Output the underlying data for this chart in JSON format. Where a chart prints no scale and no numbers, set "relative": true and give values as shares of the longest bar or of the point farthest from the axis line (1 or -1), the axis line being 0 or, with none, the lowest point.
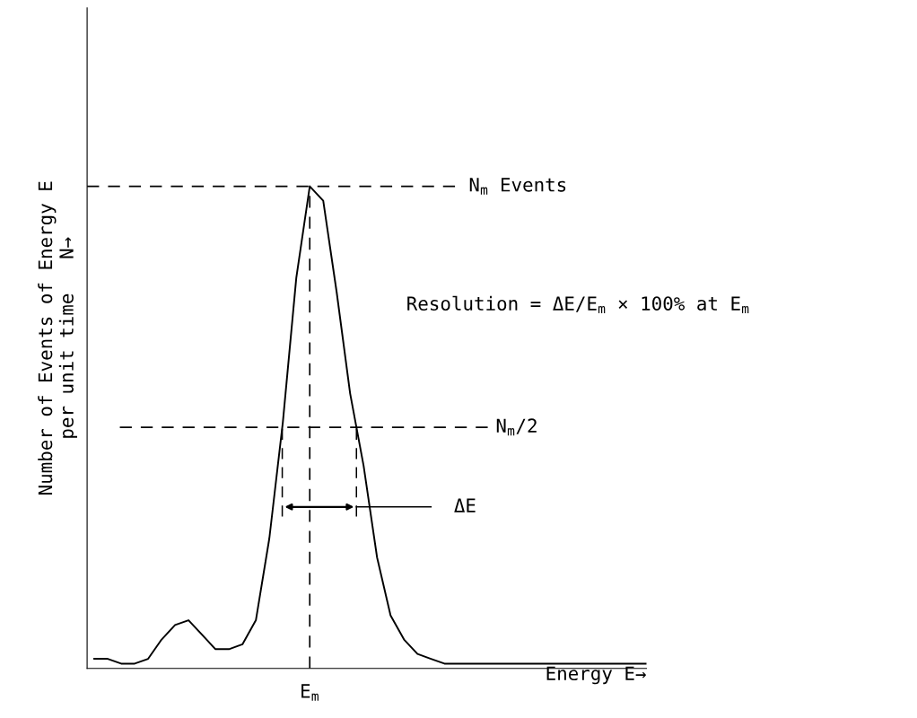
{
  "chart_data": {
    "type": "line",
    "relative": true,
    "xlabel": "Energy E→",
    "ylabel": "Number of Events of Energy E\nper unit time   N→",
    "categories": [
      null,
      null,
      null,
      null,
      null,
      null,
      null,
      null,
      null,
      null,
      null,
      null,
      null,
      null,
      null,
      null,
      null,
      null,
      null,
      null,
      null,
      null,
      null,
      null,
      null,
      null,
      null,
      null,
      null,
      null,
      null,
      null,
      null,
      null,
      null,
      null,
      null,
      null,
      null,
      null,
      null,
      null
    ],
    "series": [
      {
        "color": "#000000",
        "values": [
          0.02,
          0.02,
          0.01,
          0.01,
          0.02,
          0.06,
          0.09,
          0.1,
          0.07,
          0.04,
          0.04,
          0.05,
          0.1,
          0.27,
          0.51,
          0.81,
          1.0,
          0.97,
          0.78,
          0.57,
          0.42,
          0.23,
          0.11,
          0.06,
          0.03,
          0.02,
          0.01,
          0.01,
          0.01,
          0.01,
          0.01,
          0.01,
          0.01,
          0.01,
          0.01,
          0.01,
          0.01,
          0.01,
          0.01,
          0.01,
          0.01,
          0.01
        ]
      }
    ],
    "annotations": [
      "Resolution = ΔE/E$_{m}$ × 100% at E$_{m}$",
      "ΔE",
      "E$_{m}$",
      "N$_{m}$ Events",
      "N$_{m}$/2"
    ],
    "tick_labels": false,
    "marker": "none",
    "line_style": "solid"
  }
}
